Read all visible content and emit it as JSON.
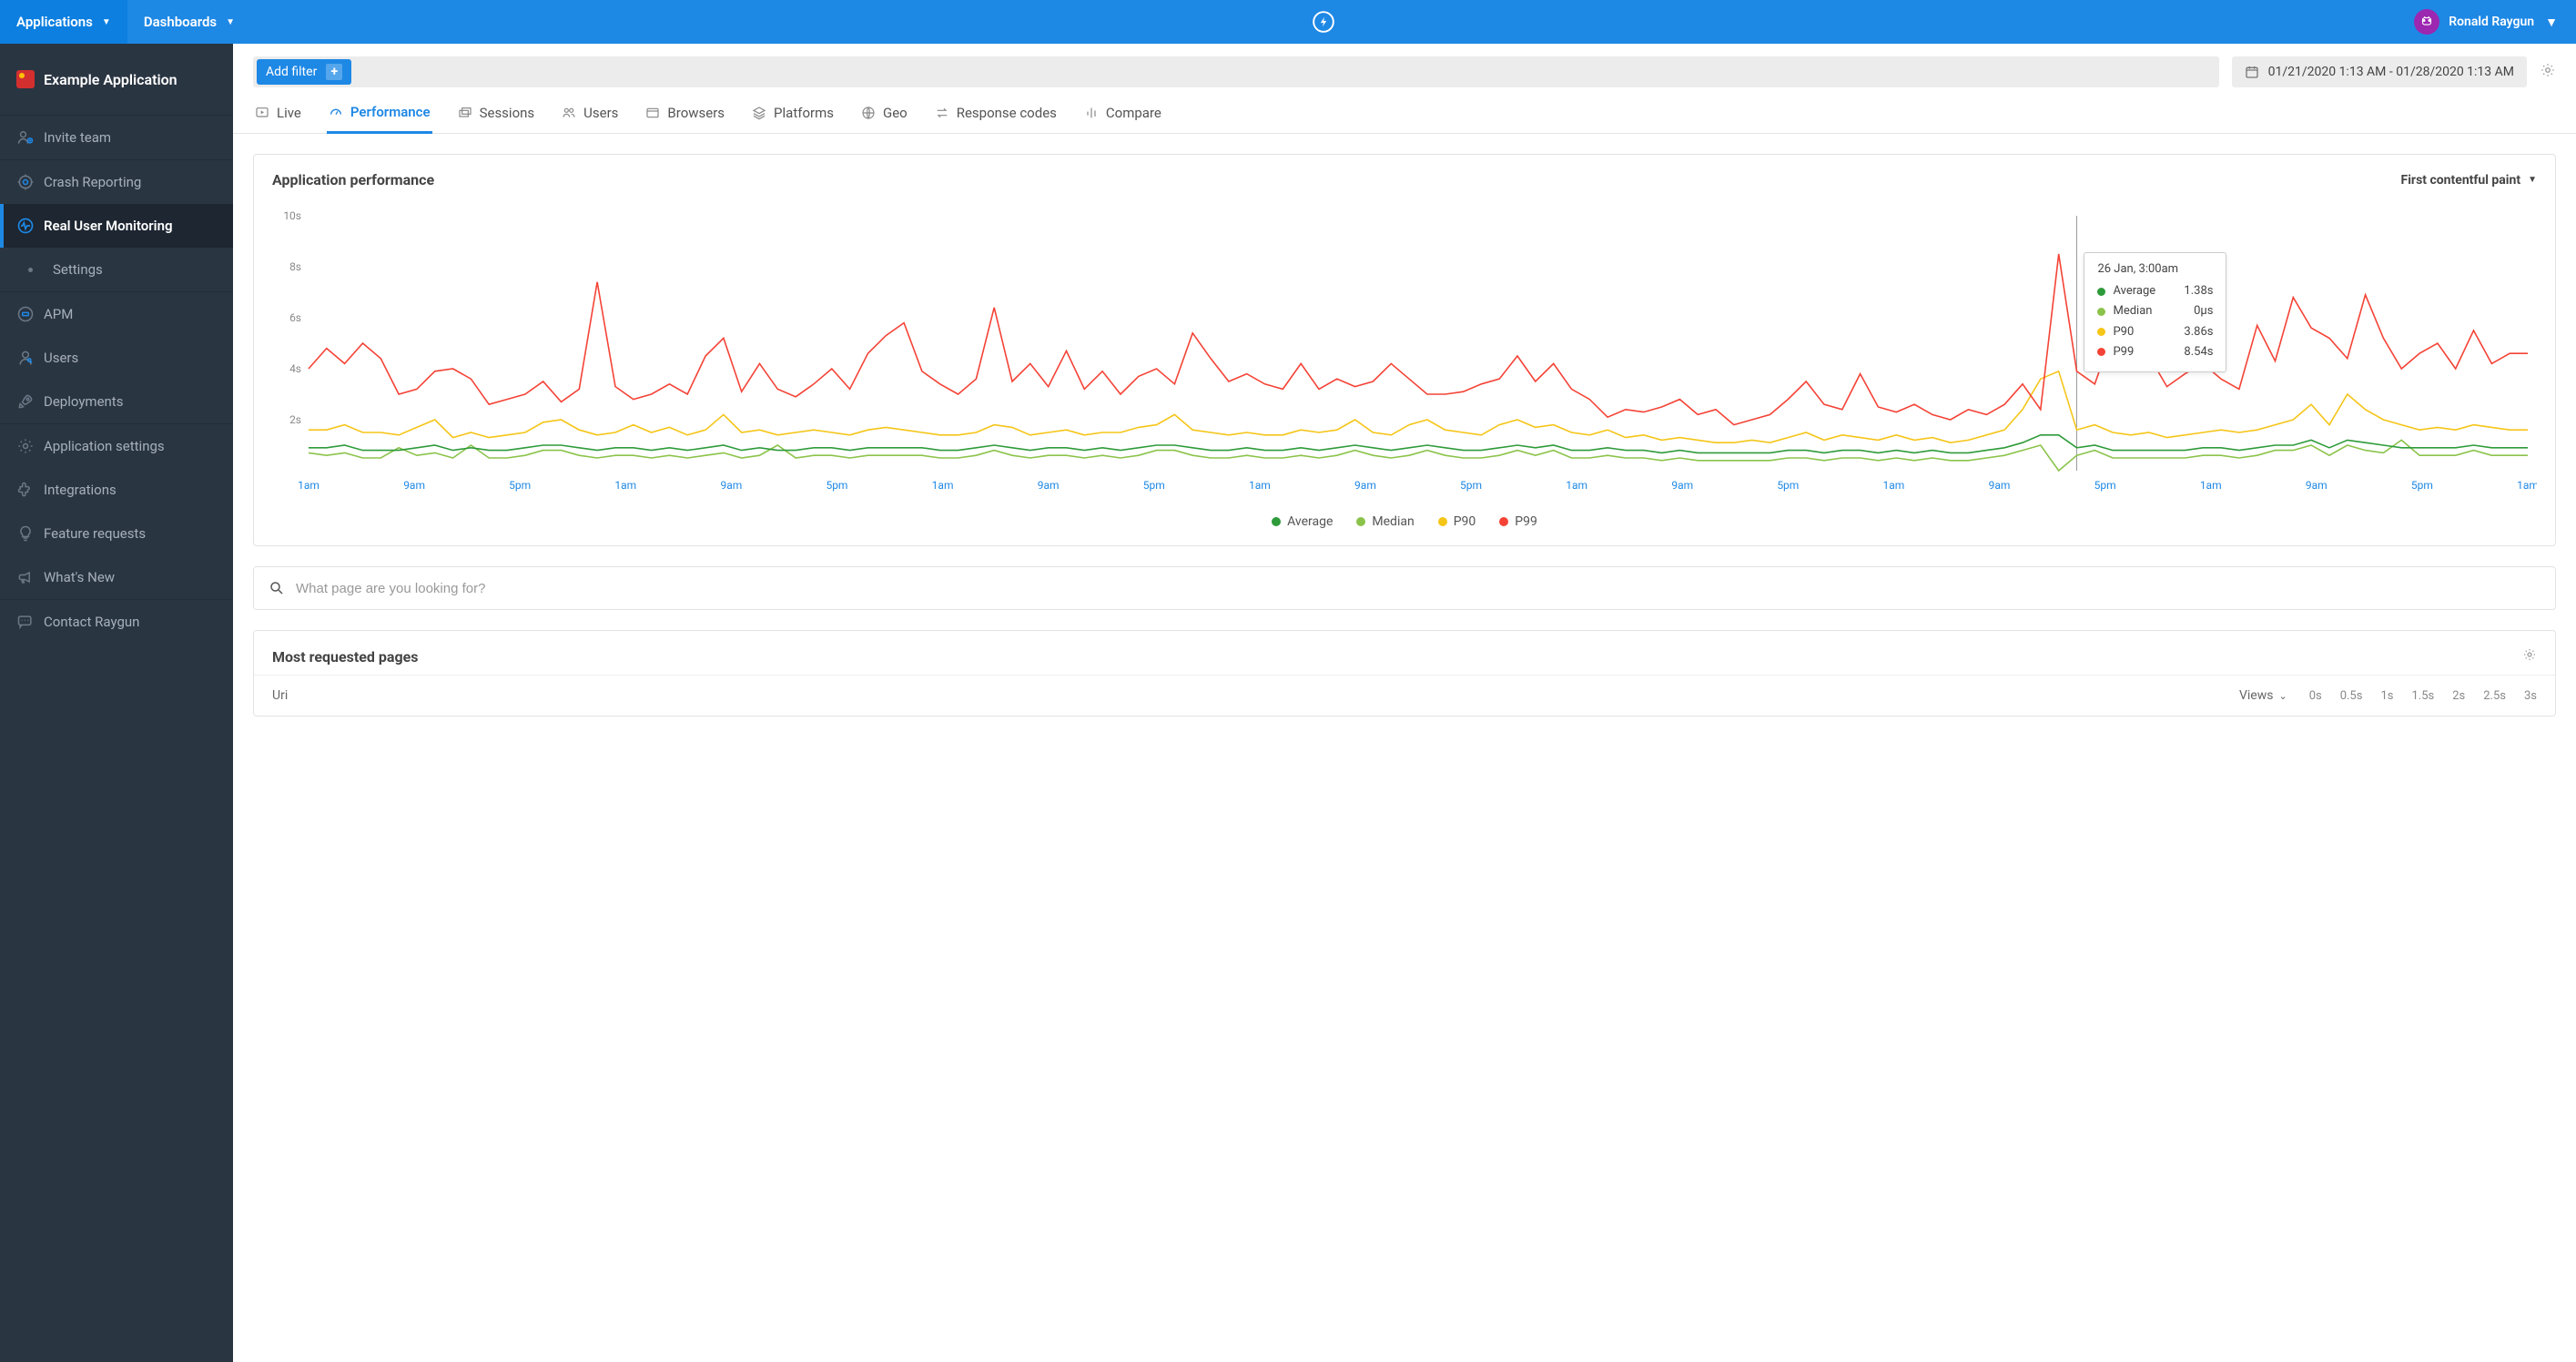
{
  "topbar": {
    "applications_label": "Applications",
    "dashboards_label": "Dashboards",
    "user_name": "Ronald Raygun"
  },
  "sidebar": {
    "app_name": "Example Application",
    "items": [
      {
        "label": "Invite team"
      },
      {
        "label": "Crash Reporting"
      },
      {
        "label": "Real User Monitoring"
      },
      {
        "label": "Settings"
      },
      {
        "label": "APM"
      },
      {
        "label": "Users"
      },
      {
        "label": "Deployments"
      },
      {
        "label": "Application settings"
      },
      {
        "label": "Integrations"
      },
      {
        "label": "Feature requests"
      },
      {
        "label": "What's New"
      },
      {
        "label": "Contact Raygun"
      }
    ]
  },
  "filter": {
    "add_filter_label": "Add filter",
    "date_range": "01/21/2020 1:13 AM - 01/28/2020 1:13 AM"
  },
  "tabs": {
    "items": [
      {
        "label": "Live"
      },
      {
        "label": "Performance"
      },
      {
        "label": "Sessions"
      },
      {
        "label": "Users"
      },
      {
        "label": "Browsers"
      },
      {
        "label": "Platforms"
      },
      {
        "label": "Geo"
      },
      {
        "label": "Response codes"
      },
      {
        "label": "Compare"
      }
    ]
  },
  "perf_chart": {
    "title": "Application performance",
    "metric_selector": "First contentful paint",
    "type": "line",
    "y": {
      "min": 0,
      "max": 10,
      "step": 2,
      "unit": "s"
    },
    "x_labels": [
      "1am",
      "9am",
      "5pm",
      "1am",
      "9am",
      "5pm",
      "1am",
      "9am",
      "5pm",
      "1am",
      "9am",
      "5pm",
      "1am",
      "9am",
      "5pm",
      "1am",
      "9am",
      "5pm",
      "1am",
      "9am",
      "5pm",
      "1am"
    ],
    "colors": {
      "average": "#2e9b3a",
      "median": "#8bc34a",
      "p90": "#f5c518",
      "p99": "#f44336",
      "grid": "#f0f0f0",
      "axis_text": "#888888",
      "crosshair": "#999999",
      "background": "#ffffff"
    },
    "legend": [
      {
        "key": "average",
        "label": "Average"
      },
      {
        "key": "median",
        "label": "Median"
      },
      {
        "key": "p90",
        "label": "P90"
      },
      {
        "key": "p99",
        "label": "P99"
      }
    ],
    "tooltip": {
      "timestamp": "26 Jan, 3:00am",
      "rows": [
        {
          "key": "average",
          "label": "Average",
          "value": "1.38s"
        },
        {
          "key": "median",
          "label": "Median",
          "value": "0µs"
        },
        {
          "key": "p90",
          "label": "P90",
          "value": "3.86s"
        },
        {
          "key": "p99",
          "label": "P99",
          "value": "8.54s"
        }
      ],
      "x_index": 98
    },
    "series": {
      "p99": [
        4.0,
        4.8,
        4.2,
        5.0,
        4.4,
        3.0,
        3.2,
        3.9,
        4.0,
        3.6,
        2.6,
        2.8,
        3.0,
        3.5,
        2.7,
        3.2,
        7.4,
        3.3,
        2.8,
        3.0,
        3.4,
        3.0,
        4.5,
        5.2,
        3.1,
        4.2,
        3.2,
        2.9,
        3.4,
        4.0,
        3.2,
        4.6,
        5.3,
        5.8,
        3.9,
        3.4,
        3.0,
        3.6,
        6.4,
        3.5,
        4.2,
        3.3,
        4.7,
        3.2,
        3.9,
        3.0,
        3.7,
        4.0,
        3.4,
        5.4,
        4.4,
        3.5,
        3.8,
        3.4,
        3.2,
        4.2,
        3.2,
        3.6,
        3.3,
        3.5,
        4.2,
        3.6,
        3.0,
        3.0,
        3.1,
        3.4,
        3.6,
        4.5,
        3.5,
        4.2,
        3.2,
        2.8,
        2.1,
        2.4,
        2.3,
        2.5,
        2.8,
        2.2,
        2.4,
        1.8,
        2.0,
        2.2,
        2.8,
        3.5,
        2.6,
        2.4,
        3.8,
        2.5,
        2.3,
        2.6,
        2.2,
        2.0,
        2.4,
        2.2,
        2.6,
        3.4,
        2.4,
        8.5,
        3.9,
        3.4,
        5.4,
        5.2,
        4.5,
        3.3,
        3.8,
        4.2,
        3.6,
        3.2,
        5.7,
        4.3,
        6.8,
        5.6,
        5.2,
        4.4,
        6.9,
        5.2,
        4.0,
        4.6,
        5.0,
        4.0,
        5.5,
        4.2,
        4.6,
        4.6
      ],
      "p90": [
        1.6,
        1.6,
        1.8,
        1.5,
        1.5,
        1.4,
        1.7,
        2.0,
        1.3,
        1.5,
        1.3,
        1.4,
        1.5,
        1.9,
        2.0,
        1.6,
        1.4,
        1.5,
        1.8,
        1.5,
        1.7,
        1.4,
        1.6,
        2.2,
        1.5,
        1.6,
        1.4,
        1.5,
        1.6,
        1.5,
        1.4,
        1.6,
        1.7,
        1.6,
        1.5,
        1.4,
        1.4,
        1.5,
        1.8,
        1.7,
        1.4,
        1.5,
        1.6,
        1.4,
        1.5,
        1.5,
        1.7,
        1.8,
        2.2,
        1.6,
        1.5,
        1.4,
        1.5,
        1.4,
        1.4,
        1.6,
        1.5,
        1.6,
        2.0,
        1.5,
        1.4,
        1.8,
        2.0,
        1.6,
        1.5,
        1.4,
        1.8,
        2.0,
        1.7,
        1.8,
        1.5,
        1.4,
        1.6,
        1.3,
        1.4,
        1.2,
        1.3,
        1.2,
        1.1,
        1.1,
        1.2,
        1.1,
        1.3,
        1.5,
        1.2,
        1.4,
        1.3,
        1.2,
        1.4,
        1.2,
        1.3,
        1.1,
        1.2,
        1.4,
        1.6,
        2.4,
        3.6,
        3.9,
        1.6,
        1.8,
        1.5,
        1.4,
        1.5,
        1.3,
        1.4,
        1.5,
        1.6,
        1.5,
        1.6,
        1.8,
        2.0,
        2.6,
        1.8,
        3.0,
        2.4,
        2.0,
        1.8,
        1.6,
        1.7,
        1.6,
        1.8,
        1.7,
        1.6,
        1.6
      ],
      "average": [
        0.9,
        0.9,
        1.0,
        0.8,
        0.8,
        0.8,
        0.9,
        1.0,
        0.8,
        0.9,
        0.8,
        0.8,
        0.9,
        1.0,
        1.0,
        0.9,
        0.8,
        0.9,
        0.9,
        0.8,
        0.9,
        0.8,
        0.9,
        1.0,
        0.8,
        0.9,
        0.8,
        0.8,
        0.9,
        0.9,
        0.8,
        0.9,
        0.9,
        0.9,
        0.9,
        0.8,
        0.8,
        0.9,
        1.0,
        0.9,
        0.8,
        0.9,
        0.9,
        0.8,
        0.9,
        0.8,
        0.9,
        1.0,
        1.0,
        0.9,
        0.8,
        0.8,
        0.9,
        0.8,
        0.8,
        0.9,
        0.8,
        0.9,
        1.0,
        0.9,
        0.8,
        0.9,
        1.0,
        0.9,
        0.8,
        0.8,
        0.9,
        1.0,
        0.9,
        1.0,
        0.8,
        0.8,
        0.9,
        0.8,
        0.8,
        0.7,
        0.8,
        0.7,
        0.7,
        0.7,
        0.7,
        0.7,
        0.8,
        0.8,
        0.7,
        0.8,
        0.8,
        0.7,
        0.8,
        0.7,
        0.8,
        0.7,
        0.7,
        0.8,
        0.9,
        1.1,
        1.4,
        1.4,
        0.9,
        1.0,
        0.8,
        0.8,
        0.8,
        0.8,
        0.8,
        0.9,
        0.9,
        0.8,
        0.9,
        1.0,
        1.0,
        1.2,
        0.9,
        1.2,
        1.1,
        1.0,
        0.9,
        0.9,
        0.9,
        0.9,
        1.0,
        0.9,
        0.9,
        0.9
      ],
      "median": [
        0.7,
        0.6,
        0.7,
        0.5,
        0.5,
        0.9,
        0.6,
        0.7,
        0.5,
        1.0,
        0.5,
        0.5,
        0.6,
        0.8,
        0.8,
        0.6,
        0.5,
        0.6,
        0.6,
        0.5,
        0.6,
        0.5,
        0.6,
        0.7,
        0.5,
        0.6,
        1.0,
        0.5,
        0.6,
        0.6,
        0.5,
        0.6,
        0.6,
        0.6,
        0.6,
        0.5,
        0.5,
        0.6,
        0.8,
        0.6,
        0.5,
        0.6,
        0.6,
        0.5,
        0.6,
        0.5,
        0.6,
        0.8,
        0.8,
        0.6,
        0.5,
        0.5,
        0.6,
        0.5,
        0.5,
        0.6,
        0.5,
        0.6,
        0.8,
        0.6,
        0.5,
        0.6,
        0.8,
        0.6,
        0.5,
        0.5,
        0.6,
        0.8,
        0.6,
        0.8,
        0.5,
        0.5,
        0.6,
        0.5,
        0.5,
        0.4,
        0.5,
        0.4,
        0.4,
        0.4,
        0.4,
        0.4,
        0.5,
        0.5,
        0.4,
        0.5,
        0.5,
        0.4,
        0.5,
        0.4,
        0.5,
        0.4,
        0.4,
        0.5,
        0.6,
        0.8,
        1.0,
        0.0,
        0.6,
        0.8,
        0.5,
        0.5,
        0.5,
        0.5,
        0.5,
        0.6,
        0.6,
        0.5,
        0.6,
        0.8,
        0.8,
        1.0,
        0.6,
        1.0,
        0.8,
        0.7,
        1.2,
        0.6,
        0.6,
        0.6,
        0.8,
        0.6,
        0.6,
        0.6
      ]
    }
  },
  "search": {
    "placeholder": "What page are you looking for?"
  },
  "pages_table": {
    "title": "Most requested pages",
    "col_uri": "Uri",
    "col_views": "Views",
    "ticks": [
      "0s",
      "0.5s",
      "1s",
      "1.5s",
      "2s",
      "2.5s",
      "3s"
    ]
  }
}
